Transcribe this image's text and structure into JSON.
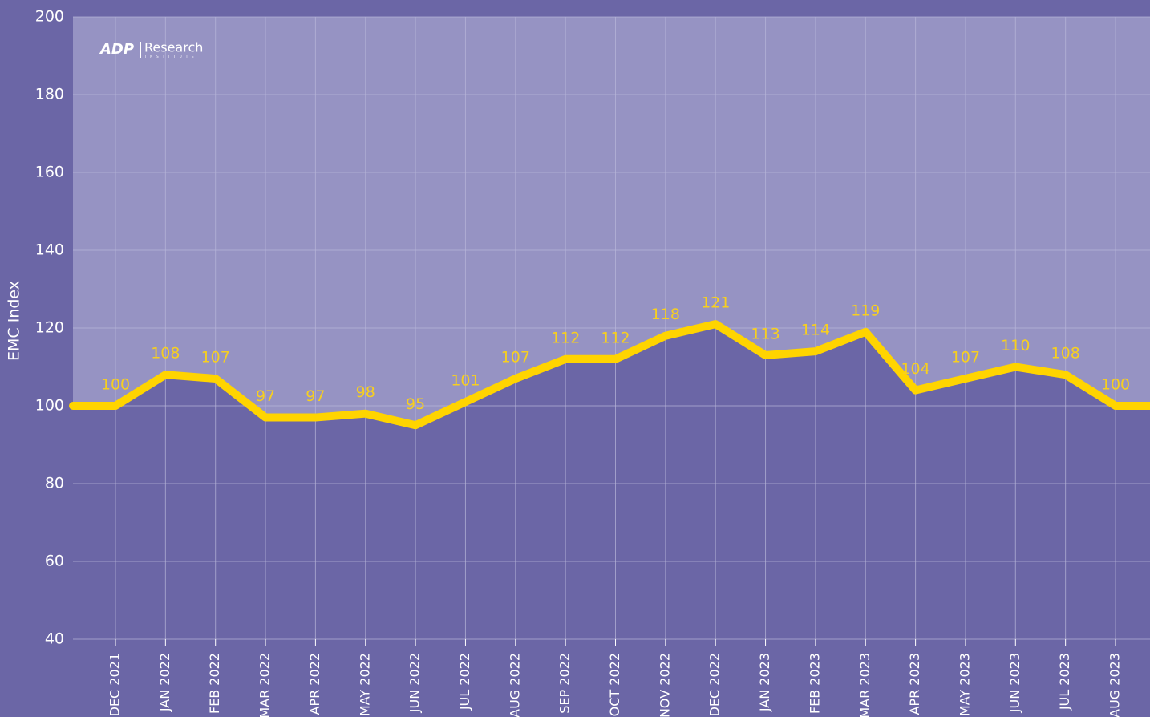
{
  "chart_data": {
    "type": "line",
    "y_label": "EMC Index",
    "logo": {
      "brand": "ADP",
      "name": "Research",
      "sub": "INSTITUTE"
    },
    "categories": [
      "DEC 2021",
      "JAN 2022",
      "FEB 2022",
      "MAR 2022",
      "APR 2022",
      "MAY 2022",
      "JUN 2022",
      "JUL 2022",
      "AUG 2022",
      "SEP 2022",
      "OCT 2022",
      "NOV 2022",
      "DEC 2022",
      "JAN 2023",
      "FEB 2023",
      "MAR 2023",
      "APR 2023",
      "MAY 2023",
      "JUN 2023",
      "JUL 2023",
      "AUG 2023"
    ],
    "series": [
      {
        "name": "EMC Index",
        "color": "#ffd400",
        "values": [
          100,
          108,
          107,
          97,
          97,
          98,
          95,
          101,
          107,
          112,
          112,
          118,
          121,
          113,
          114,
          119,
          104,
          107,
          110,
          108,
          100
        ]
      }
    ],
    "ylim": [
      40,
      200
    ],
    "yticks": [
      40,
      60,
      80,
      100,
      120,
      140,
      160,
      180,
      200
    ],
    "grid": true
  }
}
